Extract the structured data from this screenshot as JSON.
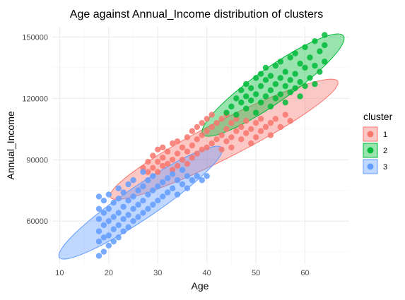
{
  "chart_data": {
    "type": "scatter",
    "title": "Age against Annual_Income distribution of clusters",
    "xlabel": "Age",
    "ylabel": "Annual_Income",
    "xlim": [
      8.5,
      69
    ],
    "ylim": [
      39000,
      155000
    ],
    "xticks": [
      10,
      20,
      30,
      40,
      50,
      60
    ],
    "yticks": [
      60000,
      90000,
      120000,
      150000
    ],
    "ytick_labels": [
      "60000",
      "90000",
      "120000",
      "150000"
    ],
    "grid": true,
    "legend": {
      "title": "cluster",
      "position": "right",
      "labels": [
        "1",
        "2",
        "3"
      ]
    },
    "colors": {
      "1": "#F8766D",
      "2": "#00BA38",
      "3": "#619CFF"
    },
    "series": [
      {
        "name": "1",
        "ellipse": {
          "center": [
            43.5,
            100000
          ],
          "rx": 26,
          "ry": 9000,
          "angle": 27
        },
        "points": [
          [
            27,
            86000
          ],
          [
            28,
            84000
          ],
          [
            28,
            89000
          ],
          [
            29,
            86000
          ],
          [
            29,
            92000
          ],
          [
            30,
            84000
          ],
          [
            30,
            89000
          ],
          [
            30,
            95000
          ],
          [
            31,
            87000
          ],
          [
            31,
            91000
          ],
          [
            31,
            96000
          ],
          [
            32,
            88000
          ],
          [
            32,
            94000
          ],
          [
            33,
            85000
          ],
          [
            33,
            90000
          ],
          [
            33,
            98000
          ],
          [
            34,
            87000
          ],
          [
            34,
            93000
          ],
          [
            34,
            99000
          ],
          [
            35,
            90000
          ],
          [
            35,
            96000
          ],
          [
            36,
            88000
          ],
          [
            36,
            94000
          ],
          [
            36,
            101000
          ],
          [
            37,
            91000
          ],
          [
            37,
            97000
          ],
          [
            37,
            104000
          ],
          [
            38,
            93000
          ],
          [
            38,
            100000
          ],
          [
            38,
            106000
          ],
          [
            39,
            95000
          ],
          [
            39,
            102000
          ],
          [
            39,
            108000
          ],
          [
            40,
            96000
          ],
          [
            40,
            104000
          ],
          [
            40,
            110000
          ],
          [
            41,
            98000
          ],
          [
            41,
            106000
          ],
          [
            41,
            112000
          ],
          [
            42,
            100000
          ],
          [
            42,
            108000
          ],
          [
            43,
            95000
          ],
          [
            43,
            102000
          ],
          [
            43,
            110000
          ],
          [
            44,
            99000
          ],
          [
            44,
            105000
          ],
          [
            44,
            112000
          ],
          [
            45,
            101000
          ],
          [
            45,
            108000
          ],
          [
            45,
            96000
          ],
          [
            46,
            104000
          ],
          [
            46,
            110000
          ],
          [
            47,
            100000
          ],
          [
            47,
            106000
          ],
          [
            48,
            103000
          ],
          [
            48,
            109000
          ],
          [
            49,
            98000
          ],
          [
            49,
            105000
          ],
          [
            50,
            101000
          ],
          [
            50,
            108000
          ],
          [
            51,
            104000
          ],
          [
            51,
            110000
          ],
          [
            52,
            106000
          ],
          [
            53,
            102000
          ],
          [
            53,
            108000
          ],
          [
            54,
            110000
          ],
          [
            55,
            106000
          ],
          [
            56,
            112000
          ],
          [
            57,
            109000
          ]
        ]
      },
      {
        "name": "2",
        "ellipse": {
          "center": [
            53.5,
            126500
          ],
          "rx": 17.5,
          "ry": 8500,
          "angle": 35
        },
        "points": [
          [
            44,
            113000
          ],
          [
            45,
            116000
          ],
          [
            46,
            112000
          ],
          [
            46,
            120000
          ],
          [
            47,
            118000
          ],
          [
            47,
            124000
          ],
          [
            48,
            115000
          ],
          [
            48,
            121000
          ],
          [
            48,
            127000
          ],
          [
            49,
            119000
          ],
          [
            49,
            125000
          ],
          [
            50,
            113000
          ],
          [
            50,
            122000
          ],
          [
            50,
            130000
          ],
          [
            51,
            118000
          ],
          [
            51,
            126000
          ],
          [
            51,
            132000
          ],
          [
            52,
            121000
          ],
          [
            52,
            129000
          ],
          [
            52,
            135000
          ],
          [
            53,
            116000
          ],
          [
            53,
            124000
          ],
          [
            53,
            131000
          ],
          [
            54,
            120000
          ],
          [
            54,
            127000
          ],
          [
            54,
            136000
          ],
          [
            55,
            122000
          ],
          [
            55,
            130000
          ],
          [
            55,
            138000
          ],
          [
            56,
            118000
          ],
          [
            56,
            126000
          ],
          [
            56,
            133000
          ],
          [
            57,
            123000
          ],
          [
            57,
            129000
          ],
          [
            57,
            140000
          ],
          [
            58,
            125000
          ],
          [
            58,
            132000
          ],
          [
            58,
            142000
          ],
          [
            59,
            121000
          ],
          [
            59,
            128000
          ],
          [
            59,
            137000
          ],
          [
            60,
            126000
          ],
          [
            60,
            135000
          ],
          [
            60,
            145000
          ],
          [
            61,
            130000
          ],
          [
            61,
            140000
          ],
          [
            62,
            127000
          ],
          [
            62,
            136000
          ],
          [
            62,
            148000
          ],
          [
            63,
            133000
          ],
          [
            63,
            143000
          ],
          [
            64,
            138000
          ],
          [
            64,
            151000
          ],
          [
            64,
            146000
          ]
        ]
      },
      {
        "name": "3",
        "ellipse": {
          "center": [
            26.5,
            69000
          ],
          "rx": 20,
          "ry": 8000,
          "angle": 34
        },
        "points": [
          [
            18,
            43000
          ],
          [
            18,
            50000
          ],
          [
            18,
            55000
          ],
          [
            18,
            61000
          ],
          [
            18,
            66000
          ],
          [
            18,
            72000
          ],
          [
            19,
            45000
          ],
          [
            19,
            52000
          ],
          [
            19,
            58000
          ],
          [
            19,
            64000
          ],
          [
            19,
            70000
          ],
          [
            20,
            48000
          ],
          [
            20,
            53000
          ],
          [
            20,
            60000
          ],
          [
            20,
            66000
          ],
          [
            20,
            73000
          ],
          [
            21,
            50000
          ],
          [
            21,
            56000
          ],
          [
            21,
            62000
          ],
          [
            21,
            69000
          ],
          [
            22,
            52000
          ],
          [
            22,
            58000
          ],
          [
            22,
            64000
          ],
          [
            22,
            71000
          ],
          [
            22,
            76000
          ],
          [
            23,
            55000
          ],
          [
            23,
            61000
          ],
          [
            23,
            67000
          ],
          [
            23,
            74000
          ],
          [
            24,
            57000
          ],
          [
            24,
            63000
          ],
          [
            24,
            70000
          ],
          [
            24,
            78000
          ],
          [
            25,
            60000
          ],
          [
            25,
            66000
          ],
          [
            25,
            72000
          ],
          [
            25,
            80000
          ],
          [
            26,
            62000
          ],
          [
            26,
            68000
          ],
          [
            26,
            75000
          ],
          [
            27,
            64000
          ],
          [
            27,
            70000
          ],
          [
            27,
            77000
          ],
          [
            27,
            84000
          ],
          [
            28,
            66000
          ],
          [
            28,
            73000
          ],
          [
            28,
            80000
          ],
          [
            29,
            68000
          ],
          [
            29,
            75000
          ],
          [
            29,
            82000
          ],
          [
            30,
            70000
          ],
          [
            30,
            77000
          ],
          [
            31,
            72000
          ],
          [
            31,
            79000
          ],
          [
            32,
            74000
          ],
          [
            32,
            81000
          ],
          [
            33,
            76000
          ],
          [
            33,
            83000
          ],
          [
            34,
            73000
          ],
          [
            34,
            80000
          ],
          [
            35,
            78000
          ],
          [
            35,
            85000
          ],
          [
            36,
            82000
          ],
          [
            36,
            76000
          ],
          [
            37,
            80000
          ],
          [
            38,
            82000
          ],
          [
            39,
            80000
          ],
          [
            40,
            82000
          ]
        ]
      }
    ]
  }
}
